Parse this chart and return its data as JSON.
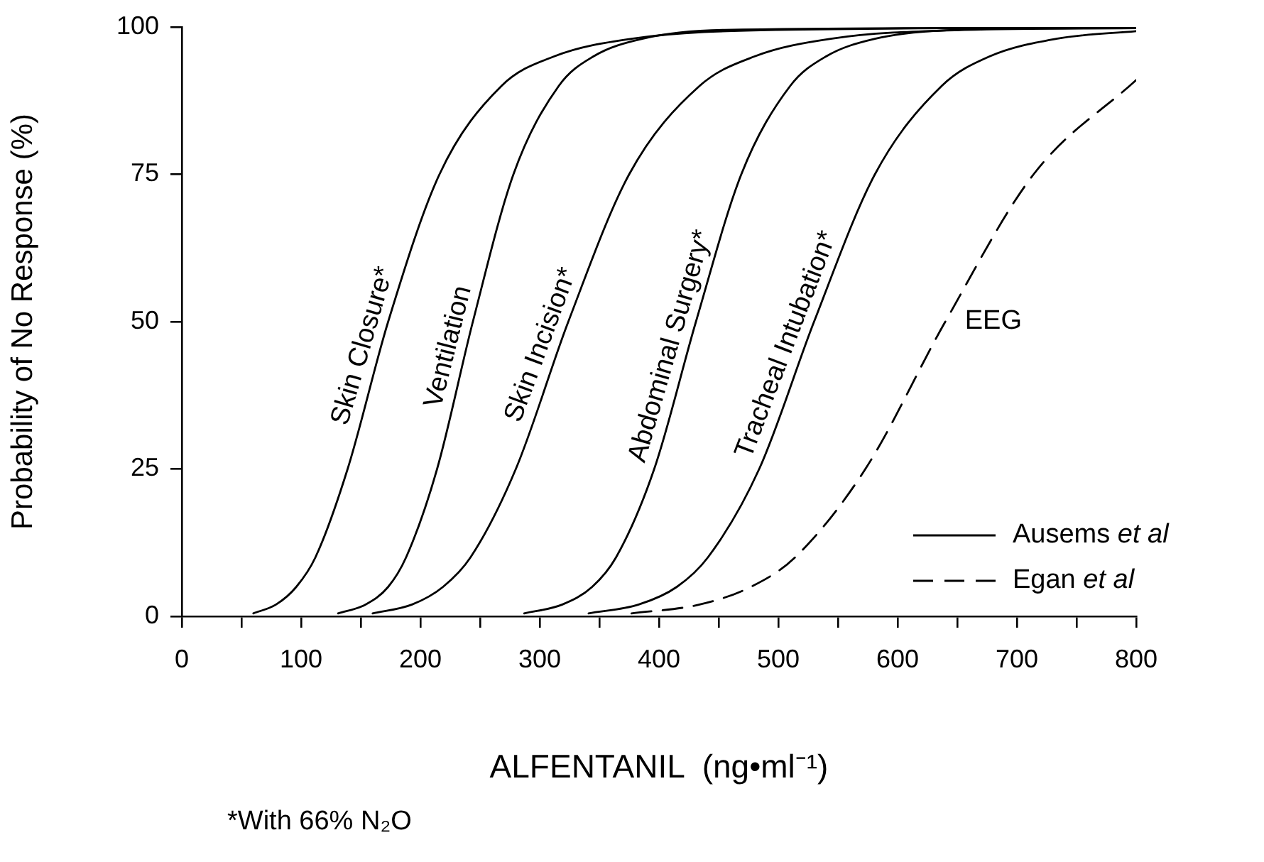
{
  "chart_data": {
    "type": "line",
    "xlabel": "ALFENTANIL  (ng•ml⁻¹)",
    "ylabel": "Probability of No Response (%)",
    "xlim": [
      0,
      800
    ],
    "ylim": [
      0,
      100
    ],
    "xticks": [
      0,
      {
        "value": 50,
        "label": null
      },
      100,
      {
        "value": 150,
        "label": null
      },
      200,
      {
        "value": 250,
        "label": null
      },
      300,
      {
        "value": 350,
        "label": null
      },
      400,
      {
        "value": 450,
        "label": null
      },
      500,
      {
        "value": 550,
        "label": null
      },
      600,
      {
        "value": 650,
        "label": null
      },
      700,
      {
        "value": 750,
        "label": null
      },
      800
    ],
    "yticks": [
      0,
      25,
      50,
      75,
      100
    ],
    "grid": false,
    "marker": "none",
    "series": [
      {
        "name": "Skin Closure*",
        "color": "#000000",
        "line_style": "solid",
        "x": [
          60,
          79,
          96,
          112,
          139,
          173,
          216,
          268,
          312,
          377,
          499,
          800
        ],
        "values": [
          0.5,
          2,
          5,
          10,
          25,
          50,
          75,
          90,
          95,
          98,
          99.5,
          99.9
        ]
      },
      {
        "name": "Ventilation",
        "color": "#000000",
        "line_style": "solid",
        "x": [
          131,
          154,
          173,
          188,
          214,
          244,
          278,
          316,
          345,
          386,
          455,
          800
        ],
        "values": [
          0.5,
          2,
          5,
          10,
          25,
          50,
          75,
          90,
          95,
          98,
          99.5,
          99.9
        ]
      },
      {
        "name": "Skin Incision*",
        "color": "#000000",
        "line_style": "solid",
        "x": [
          160,
          193,
          219,
          242,
          280,
          324,
          375,
          434,
          480,
          544,
          656,
          800
        ],
        "values": [
          0.5,
          2,
          5,
          10,
          25,
          50,
          75,
          90,
          95,
          98,
          99.5,
          99.8
        ]
      },
      {
        "name": "Abdominal Surgery*",
        "color": "#000000",
        "line_style": "solid",
        "x": [
          287,
          319,
          344,
          364,
          396,
          431,
          469,
          510,
          540,
          581,
          647,
          800
        ],
        "values": [
          0.5,
          2,
          5,
          10,
          25,
          50,
          75,
          90,
          95,
          98,
          99.5,
          99.9
        ]
      },
      {
        "name": "Tracheal Intubation*",
        "color": "#000000",
        "line_style": "solid",
        "x": [
          341,
          383,
          415,
          441,
          484,
          530,
          581,
          637,
          677,
          733,
          800
        ],
        "values": [
          0.5,
          2,
          5,
          10,
          25,
          50,
          75,
          90,
          95,
          98,
          99.3
        ]
      },
      {
        "name": "EEG",
        "color": "#000000",
        "line_style": "dashed",
        "x": [
          377,
          434,
          477,
          514,
          573,
          640,
          714,
          800
        ],
        "values": [
          0.5,
          2,
          5,
          10,
          25,
          50,
          75,
          91
        ]
      }
    ],
    "annotations": [
      "Ausems et al",
      "Egan et al",
      "*With 66% N₂O"
    ]
  }
}
